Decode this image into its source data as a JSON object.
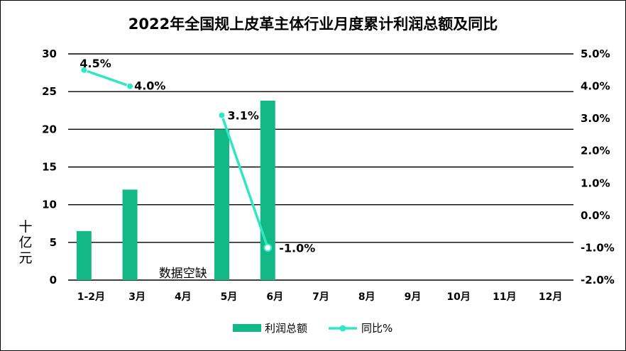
{
  "chart_data": {
    "type": "bar",
    "title": "2022年全国规上皮革主体行业月度累计利润总额及同比",
    "categories": [
      "1-2月",
      "3月",
      "4月",
      "5月",
      "6月",
      "7月",
      "8月",
      "9月",
      "10月",
      "11月",
      "12月"
    ],
    "ylabel": "十亿元",
    "ylim": [
      0,
      30
    ],
    "yticks": [
      "0",
      "5",
      "10",
      "15",
      "20",
      "25",
      "30"
    ],
    "y2lim": [
      -2.0,
      5.0
    ],
    "y2ticks": [
      "-2.0%",
      "-1.0%",
      "0.0%",
      "1.0%",
      "2.0%",
      "3.0%",
      "4.0%",
      "5.0%"
    ],
    "grid": true,
    "legend": "bottom",
    "series": [
      {
        "name": "利润总额",
        "kind": "bar",
        "axis": "left",
        "color": "#12b886",
        "values": [
          6.5,
          12.0,
          null,
          20.0,
          23.8,
          null,
          null,
          null,
          null,
          null,
          null
        ]
      },
      {
        "name": "同比%",
        "kind": "line",
        "axis": "right",
        "color": "#2ee8c4",
        "values": [
          4.5,
          4.0,
          null,
          3.1,
          -1.0,
          null,
          null,
          null,
          null,
          null,
          null
        ],
        "labels": [
          "4.5%",
          "4.0%",
          "",
          "3.1%",
          "-1.0%",
          "",
          "",
          "",
          "",
          "",
          ""
        ]
      }
    ],
    "annotation": "数据空缺"
  }
}
